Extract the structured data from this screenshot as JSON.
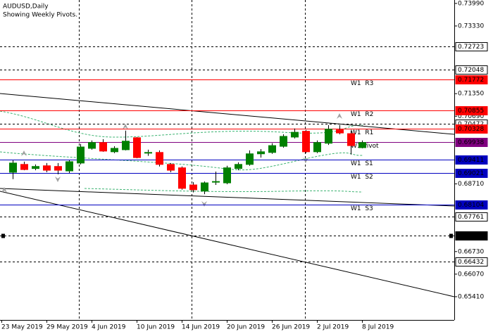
{
  "chart_data": {
    "type": "candlestick",
    "title": "AUDUSD,Daily",
    "subtitle": "Showing Weekly Pivots.",
    "categories": [
      "23 May 2019",
      null,
      null,
      null,
      "29 May 2019",
      null,
      null,
      null,
      "4 Jun 2019",
      null,
      null,
      null,
      "10 Jun 2019",
      null,
      null,
      null,
      "14 Jun 2019",
      null,
      null,
      null,
      "20 Jun 2019",
      null,
      null,
      null,
      "26 Jun 2019",
      null,
      null,
      null,
      "2 Jul 2019",
      null,
      null,
      null,
      "8 Jul 2019"
    ],
    "open": [
      null,
      0.6905,
      0.6928,
      0.6916,
      0.6924,
      0.6922,
      0.6909,
      0.6932,
      0.6975,
      0.6992,
      0.6965,
      0.6971,
      0.7006,
      0.6961,
      0.6963,
      0.6928,
      0.6918,
      0.6868,
      0.685,
      0.6876,
      0.6874,
      0.6916,
      0.6928,
      0.6959,
      0.6963,
      0.6981,
      0.7008,
      0.7025,
      0.6965,
      0.699,
      0.7029,
      0.7018,
      0.6977
    ],
    "high": [
      null,
      0.694,
      0.6936,
      0.6928,
      0.6932,
      0.6932,
      0.694,
      0.6988,
      0.6998,
      0.7002,
      0.6981,
      0.7027,
      0.7008,
      0.6971,
      0.6969,
      0.6932,
      0.6922,
      0.6876,
      0.6878,
      0.6907,
      0.6924,
      0.6934,
      0.6969,
      0.6973,
      0.699,
      0.7016,
      0.7033,
      0.7029,
      0.6998,
      0.7043,
      0.7043,
      0.7027,
      0.6998
    ],
    "low": [
      null,
      0.6885,
      0.6911,
      0.6911,
      0.6905,
      0.6899,
      0.6903,
      0.6928,
      0.6971,
      0.6965,
      0.6961,
      0.6969,
      0.6946,
      0.6953,
      0.6922,
      0.6905,
      0.6854,
      0.6846,
      0.6841,
      0.6868,
      0.687,
      0.6911,
      0.6924,
      0.6948,
      0.6959,
      0.6977,
      0.7004,
      0.6961,
      0.6961,
      0.6985,
      0.7016,
      0.6957,
      0.6975
    ],
    "close": [
      null,
      0.6932,
      0.6913,
      0.6922,
      0.6911,
      0.6911,
      0.6936,
      0.6979,
      0.6992,
      0.6967,
      0.6975,
      0.6996,
      0.6948,
      0.6963,
      0.6928,
      0.6911,
      0.6858,
      0.6854,
      0.6874,
      0.6878,
      0.6918,
      0.6928,
      0.6959,
      0.6965,
      0.6983,
      0.701,
      0.7022,
      0.6965,
      0.6992,
      0.7031,
      0.702,
      0.6983,
      0.6992
    ],
    "up_color": "#008000",
    "down_color": "#ff0000",
    "ylim": [
      0.6473,
      0.7409
    ],
    "yticks": [
      {
        "value": 0.7399,
        "label": "0.73990"
      },
      {
        "value": 0.7333,
        "label": "0.73330"
      },
      {
        "value": 0.7135,
        "label": "0.71350"
      },
      {
        "value": 0.7069,
        "label": "0.70690"
      },
      {
        "value": 0.6871,
        "label": "0.68710"
      },
      {
        "value": 0.6673,
        "label": "0.66730"
      },
      {
        "value": 0.6607,
        "label": "0.66070"
      },
      {
        "value": 0.6541,
        "label": "0.65410"
      }
    ],
    "levels": [
      {
        "value": 0.72723,
        "color": "#000000",
        "style": "dash",
        "box": "outline"
      },
      {
        "value": 0.72048,
        "color": "#000000",
        "style": "dash",
        "box": "outline"
      },
      {
        "name": "W1  R3",
        "value": 0.71772,
        "color": "#ff0000",
        "style": "solid",
        "box": "fill"
      },
      {
        "name": "W1  R2",
        "value": 0.70855,
        "color": "#ff0000",
        "style": "solid",
        "box": "fill"
      },
      {
        "value": 0.70472,
        "color": "#000000",
        "style": "dash",
        "box": "outline"
      },
      {
        "name": "W1  R1",
        "value": 0.70328,
        "color": "#ff0000",
        "style": "solid",
        "box": "fill"
      },
      {
        "name": "W1 Pivot",
        "value": 0.69938,
        "color": "#800080",
        "style": "solid",
        "box": "fill"
      },
      {
        "name": "W1  S1",
        "value": 0.69411,
        "color": "#0000c0",
        "style": "solid",
        "box": "fill"
      },
      {
        "name": "W1  S2",
        "value": 0.69021,
        "color": "#0000c0",
        "style": "solid",
        "box": "fill"
      },
      {
        "name": "W1  S3",
        "value": 0.68104,
        "color": "#0000c0",
        "style": "solid",
        "box": "fill"
      },
      {
        "value": 0.67761,
        "color": "#000000",
        "style": "dash",
        "box": "outline"
      },
      {
        "value": 0.67193,
        "color": "#000000",
        "style": "dash",
        "box": "fill"
      },
      {
        "value": 0.66432,
        "color": "#000000",
        "style": "dash",
        "box": "outline"
      }
    ]
  }
}
